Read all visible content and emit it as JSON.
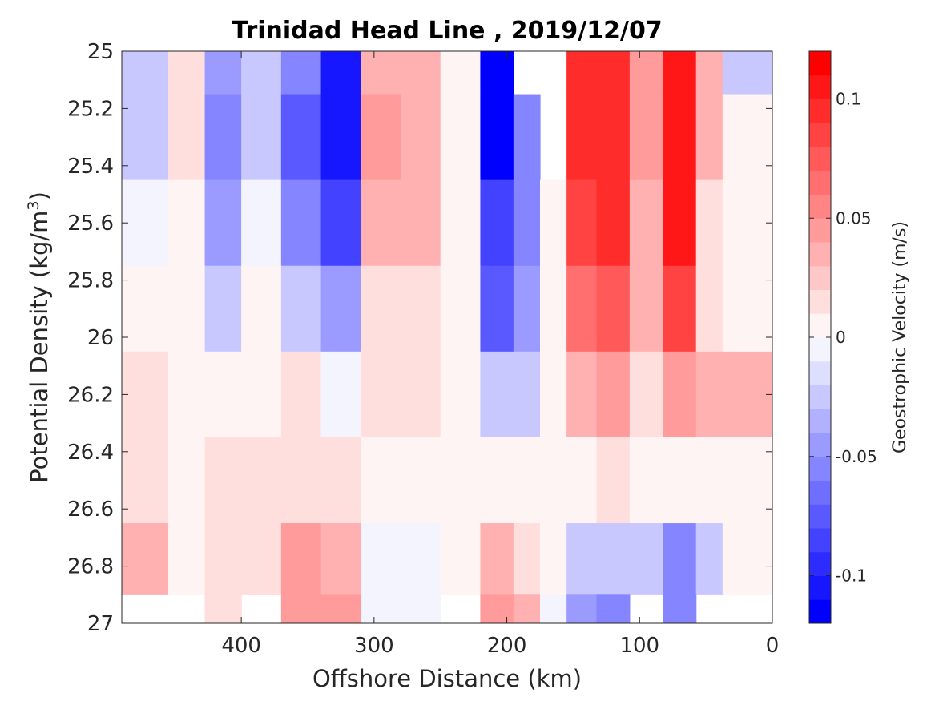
{
  "chart_data": {
    "type": "heatmap",
    "subtype": "filled-contour",
    "title": "Trinidad Head Line , 2019/12/07",
    "xlabel": "Offshore Distance (km)",
    "ylabel": "Potential Density (kg/m3)",
    "ylabel_main": "Potential Density (kg/m",
    "ylabel_sup": "3",
    "ylabel_close": ")",
    "xlim": [
      490,
      0
    ],
    "x_reversed": true,
    "ylim": [
      25,
      27
    ],
    "y_reversed": true,
    "xticks": [
      400,
      300,
      200,
      100,
      0
    ],
    "yticks": [
      25,
      25.2,
      25.4,
      25.6,
      25.8,
      26,
      26.2,
      26.4,
      26.6,
      26.8,
      27
    ],
    "xtick_labels": [
      "400",
      "300",
      "200",
      "100",
      "0"
    ],
    "ytick_labels": [
      "25",
      "25.2",
      "25.4",
      "25.6",
      "25.8",
      "26",
      "26.2",
      "26.4",
      "26.6",
      "26.8",
      "27"
    ],
    "colorbar": {
      "label": "Geostrophic Velocity (m/s)",
      "range": [
        -0.12,
        0.12
      ],
      "levels": 24,
      "ticks": [
        -0.1,
        -0.05,
        0,
        0.05,
        0.1
      ],
      "tick_labels": [
        "-0.1",
        "-0.05",
        "0",
        "0.05",
        "0.1"
      ],
      "negative_color": "#0000ff",
      "positive_color": "#ff0000",
      "zero_color": "#ffffff"
    },
    "grid": false,
    "x": [
      470,
      440,
      415,
      385,
      355,
      325,
      295,
      265,
      235,
      205,
      185,
      165,
      145,
      120,
      95,
      70,
      45,
      30
    ],
    "y": [
      25.0,
      25.3,
      25.6,
      25.9,
      26.2,
      26.5,
      26.8,
      27.0
    ],
    "z": [
      [
        -0.02,
        0.01,
        -0.04,
        -0.02,
        -0.06,
        -0.1,
        0.03,
        0.03,
        0.0,
        -0.11,
        null,
        null,
        0.09,
        0.09,
        0.04,
        0.11,
        0.03,
        -0.02
      ],
      [
        -0.03,
        0.01,
        -0.05,
        -0.02,
        -0.07,
        -0.1,
        0.04,
        0.03,
        0.0,
        -0.11,
        -0.06,
        null,
        0.09,
        0.095,
        0.04,
        0.11,
        0.03,
        0.0
      ],
      [
        -0.01,
        0.0,
        -0.04,
        -0.01,
        -0.06,
        -0.08,
        0.03,
        0.03,
        0.0,
        -0.09,
        -0.05,
        0.0,
        0.08,
        0.09,
        0.03,
        0.1,
        0.02,
        0.0
      ],
      [
        0.0,
        0.0,
        -0.02,
        0.0,
        -0.03,
        -0.04,
        0.02,
        0.02,
        0.0,
        -0.07,
        -0.04,
        0.0,
        0.06,
        0.07,
        0.03,
        0.08,
        0.02,
        0.0
      ],
      [
        0.01,
        0.0,
        0.0,
        0.0,
        0.01,
        -0.01,
        0.01,
        0.01,
        0.0,
        -0.03,
        -0.02,
        0.0,
        0.03,
        0.05,
        0.02,
        0.05,
        0.03,
        0.03
      ],
      [
        0.01,
        0.0,
        0.01,
        0.01,
        0.02,
        0.01,
        0.0,
        0.0,
        0.0,
        0.0,
        0.0,
        0.0,
        0.0,
        0.01,
        0.0,
        0.0,
        0.0,
        0.0
      ],
      [
        0.03,
        0.0,
        0.02,
        0.02,
        0.04,
        0.03,
        -0.01,
        -0.01,
        0.0,
        0.03,
        0.02,
        0.0,
        -0.03,
        -0.03,
        -0.02,
        -0.05,
        -0.02,
        0.0
      ],
      [
        null,
        null,
        0.02,
        null,
        0.05,
        0.04,
        -0.01,
        -0.01,
        null,
        0.05,
        0.03,
        -0.01,
        -0.04,
        -0.05,
        null,
        -0.06,
        null,
        null
      ]
    ]
  }
}
